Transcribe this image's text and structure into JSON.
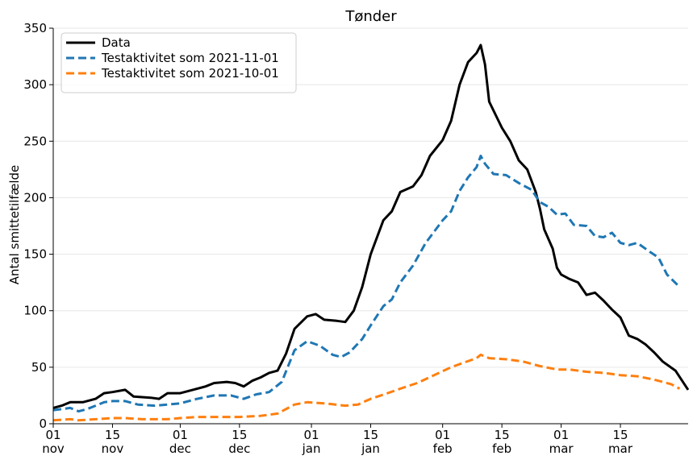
{
  "chart_data": {
    "type": "line",
    "title": "Tønder",
    "xlabel": "",
    "ylabel": "Antal smittetilfælde",
    "ylim": [
      0,
      350
    ],
    "yticks": [
      0,
      50,
      100,
      150,
      200,
      250,
      300,
      350
    ],
    "xlim": [
      "2021-11-01",
      "2022-03-31"
    ],
    "xticks": [
      {
        "date": "2021-11-01",
        "day": "01",
        "month": "nov"
      },
      {
        "date": "2021-11-15",
        "day": "15",
        "month": "nov"
      },
      {
        "date": "2021-12-01",
        "day": "01",
        "month": "dec"
      },
      {
        "date": "2021-12-15",
        "day": "15",
        "month": "dec"
      },
      {
        "date": "2022-01-01",
        "day": "01",
        "month": "jan"
      },
      {
        "date": "2022-01-15",
        "day": "15",
        "month": "jan"
      },
      {
        "date": "2022-02-01",
        "day": "01",
        "month": "feb"
      },
      {
        "date": "2022-02-15",
        "day": "15",
        "month": "feb"
      },
      {
        "date": "2022-03-01",
        "day": "01",
        "month": "mar"
      },
      {
        "date": "2022-03-15",
        "day": "15",
        "month": "mar"
      }
    ],
    "grid": "horizontal",
    "legend_position": "top-left",
    "series": [
      {
        "name": "Data",
        "color": "#000000",
        "style": "solid",
        "points": [
          [
            "2021-11-01",
            14
          ],
          [
            "2021-11-03",
            16
          ],
          [
            "2021-11-05",
            19
          ],
          [
            "2021-11-08",
            19
          ],
          [
            "2021-11-11",
            22
          ],
          [
            "2021-11-13",
            27
          ],
          [
            "2021-11-15",
            28
          ],
          [
            "2021-11-18",
            30
          ],
          [
            "2021-11-20",
            24
          ],
          [
            "2021-11-24",
            23
          ],
          [
            "2021-11-26",
            22
          ],
          [
            "2021-11-28",
            27
          ],
          [
            "2021-12-01",
            27
          ],
          [
            "2021-12-04",
            30
          ],
          [
            "2021-12-07",
            33
          ],
          [
            "2021-12-09",
            36
          ],
          [
            "2021-12-12",
            37
          ],
          [
            "2021-12-14",
            36
          ],
          [
            "2021-12-16",
            33
          ],
          [
            "2021-12-18",
            38
          ],
          [
            "2021-12-20",
            41
          ],
          [
            "2021-12-22",
            45
          ],
          [
            "2021-12-24",
            47
          ],
          [
            "2021-12-26",
            62
          ],
          [
            "2021-12-28",
            84
          ],
          [
            "2021-12-31",
            95
          ],
          [
            "2022-01-02",
            97
          ],
          [
            "2022-01-04",
            92
          ],
          [
            "2022-01-07",
            91
          ],
          [
            "2022-01-09",
            90
          ],
          [
            "2022-01-11",
            100
          ],
          [
            "2022-01-13",
            121
          ],
          [
            "2022-01-15",
            150
          ],
          [
            "2022-01-18",
            180
          ],
          [
            "2022-01-20",
            188
          ],
          [
            "2022-01-22",
            205
          ],
          [
            "2022-01-25",
            210
          ],
          [
            "2022-01-27",
            220
          ],
          [
            "2022-01-29",
            237
          ],
          [
            "2022-02-01",
            251
          ],
          [
            "2022-02-03",
            268
          ],
          [
            "2022-02-05",
            300
          ],
          [
            "2022-02-07",
            320
          ],
          [
            "2022-02-09",
            328
          ],
          [
            "2022-02-10",
            335
          ],
          [
            "2022-02-11",
            318
          ],
          [
            "2022-02-12",
            285
          ],
          [
            "2022-02-15",
            262
          ],
          [
            "2022-02-17",
            250
          ],
          [
            "2022-02-19",
            233
          ],
          [
            "2022-02-21",
            225
          ],
          [
            "2022-02-23",
            205
          ],
          [
            "2022-02-24",
            190
          ],
          [
            "2022-02-25",
            172
          ],
          [
            "2022-02-27",
            155
          ],
          [
            "2022-02-28",
            138
          ],
          [
            "2022-03-01",
            132
          ],
          [
            "2022-03-03",
            128
          ],
          [
            "2022-03-05",
            125
          ],
          [
            "2022-03-07",
            114
          ],
          [
            "2022-03-09",
            116
          ],
          [
            "2022-03-11",
            109
          ],
          [
            "2022-03-13",
            101
          ],
          [
            "2022-03-15",
            94
          ],
          [
            "2022-03-17",
            78
          ],
          [
            "2022-03-19",
            75
          ],
          [
            "2022-03-21",
            70
          ],
          [
            "2022-03-23",
            63
          ],
          [
            "2022-03-25",
            55
          ],
          [
            "2022-03-28",
            47
          ],
          [
            "2022-03-31",
            30
          ]
        ]
      },
      {
        "name": "Testaktivitet som 2021-11-01",
        "color": "#1f77b4",
        "style": "dashed",
        "points": [
          [
            "2021-11-01",
            12
          ],
          [
            "2021-11-03",
            13
          ],
          [
            "2021-11-05",
            14
          ],
          [
            "2021-11-07",
            11
          ],
          [
            "2021-11-09",
            13
          ],
          [
            "2021-11-11",
            16
          ],
          [
            "2021-11-13",
            19
          ],
          [
            "2021-11-15",
            20
          ],
          [
            "2021-11-18",
            20
          ],
          [
            "2021-11-21",
            17
          ],
          [
            "2021-11-25",
            16
          ],
          [
            "2021-11-28",
            17
          ],
          [
            "2021-12-01",
            18
          ],
          [
            "2021-12-05",
            22
          ],
          [
            "2021-12-09",
            25
          ],
          [
            "2021-12-13",
            25
          ],
          [
            "2021-12-16",
            22
          ],
          [
            "2021-12-19",
            26
          ],
          [
            "2021-12-22",
            28
          ],
          [
            "2021-12-25",
            37
          ],
          [
            "2021-12-28",
            65
          ],
          [
            "2021-12-31",
            73
          ],
          [
            "2022-01-03",
            69
          ],
          [
            "2022-01-06",
            61
          ],
          [
            "2022-01-08",
            59
          ],
          [
            "2022-01-10",
            63
          ],
          [
            "2022-01-13",
            75
          ],
          [
            "2022-01-15",
            87
          ],
          [
            "2022-01-18",
            104
          ],
          [
            "2022-01-20",
            110
          ],
          [
            "2022-01-22",
            125
          ],
          [
            "2022-01-25",
            140
          ],
          [
            "2022-01-28",
            160
          ],
          [
            "2022-02-01",
            180
          ],
          [
            "2022-02-03",
            188
          ],
          [
            "2022-02-05",
            206
          ],
          [
            "2022-02-07",
            218
          ],
          [
            "2022-02-09",
            227
          ],
          [
            "2022-02-10",
            237
          ],
          [
            "2022-02-11",
            230
          ],
          [
            "2022-02-13",
            221
          ],
          [
            "2022-02-16",
            220
          ],
          [
            "2022-02-19",
            213
          ],
          [
            "2022-02-22",
            207
          ],
          [
            "2022-02-24",
            196
          ],
          [
            "2022-02-26",
            192
          ],
          [
            "2022-02-28",
            185
          ],
          [
            "2022-03-02",
            186
          ],
          [
            "2022-03-04",
            176
          ],
          [
            "2022-03-07",
            175
          ],
          [
            "2022-03-09",
            166
          ],
          [
            "2022-03-11",
            165
          ],
          [
            "2022-03-13",
            169
          ],
          [
            "2022-03-15",
            160
          ],
          [
            "2022-03-17",
            158
          ],
          [
            "2022-03-19",
            160
          ],
          [
            "2022-03-22",
            152
          ],
          [
            "2022-03-24",
            147
          ],
          [
            "2022-03-26",
            132
          ],
          [
            "2022-03-29",
            121
          ]
        ]
      },
      {
        "name": "Testaktivitet som 2021-10-01",
        "color": "#ff7f0e",
        "style": "dashed",
        "points": [
          [
            "2021-11-01",
            3
          ],
          [
            "2021-11-05",
            4
          ],
          [
            "2021-11-07",
            3
          ],
          [
            "2021-11-11",
            4
          ],
          [
            "2021-11-15",
            5
          ],
          [
            "2021-11-18",
            5
          ],
          [
            "2021-11-22",
            4
          ],
          [
            "2021-11-28",
            4
          ],
          [
            "2021-12-01",
            5
          ],
          [
            "2021-12-05",
            6
          ],
          [
            "2021-12-10",
            6
          ],
          [
            "2021-12-15",
            6
          ],
          [
            "2021-12-20",
            7
          ],
          [
            "2021-12-24",
            9
          ],
          [
            "2021-12-28",
            17
          ],
          [
            "2021-12-31",
            19
          ],
          [
            "2022-01-04",
            18
          ],
          [
            "2022-01-09",
            16
          ],
          [
            "2022-01-12",
            17
          ],
          [
            "2022-01-15",
            22
          ],
          [
            "2022-01-19",
            27
          ],
          [
            "2022-01-22",
            31
          ],
          [
            "2022-01-26",
            36
          ],
          [
            "2022-01-30",
            43
          ],
          [
            "2022-02-03",
            50
          ],
          [
            "2022-02-06",
            54
          ],
          [
            "2022-02-09",
            58
          ],
          [
            "2022-02-10",
            61
          ],
          [
            "2022-02-12",
            58
          ],
          [
            "2022-02-16",
            57
          ],
          [
            "2022-02-20",
            55
          ],
          [
            "2022-02-24",
            51
          ],
          [
            "2022-02-28",
            48
          ],
          [
            "2022-03-03",
            48
          ],
          [
            "2022-03-07",
            46
          ],
          [
            "2022-03-11",
            45
          ],
          [
            "2022-03-15",
            43
          ],
          [
            "2022-03-19",
            42
          ],
          [
            "2022-03-23",
            39
          ],
          [
            "2022-03-27",
            35
          ],
          [
            "2022-03-29",
            31
          ]
        ]
      }
    ]
  }
}
